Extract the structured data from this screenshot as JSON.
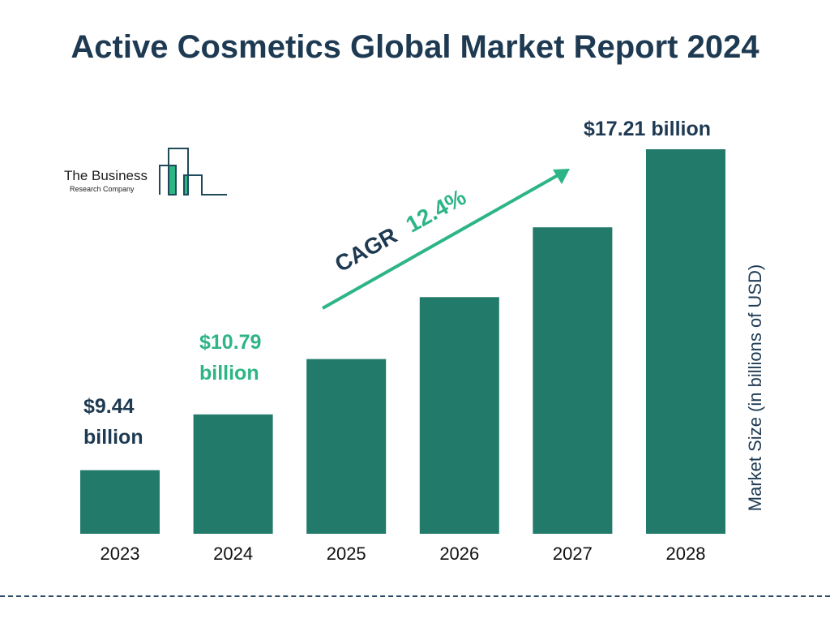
{
  "title": "Active Cosmetics Global Market Report 2024",
  "logo": {
    "line1": "The Business",
    "line2": "Research Company"
  },
  "chart_data": {
    "type": "bar",
    "categories": [
      "2023",
      "2024",
      "2025",
      "2026",
      "2027",
      "2028"
    ],
    "values": [
      9.44,
      10.79,
      12.13,
      13.63,
      15.32,
      17.21
    ],
    "data_labels": {
      "2023": "$9.44 billion",
      "2024": "$10.79 billion",
      "2028": "$17.21 billion"
    },
    "ylabel": "Market Size (in billions of USD)",
    "xlabel": "",
    "ylim": [
      7.9,
      17.21
    ],
    "grid": false,
    "annotation": {
      "prefix": "CAGR",
      "value": "12.4%"
    },
    "colors": {
      "bar": "#217a6a",
      "highlight": "#2db585",
      "text": "#1e3a52"
    }
  }
}
